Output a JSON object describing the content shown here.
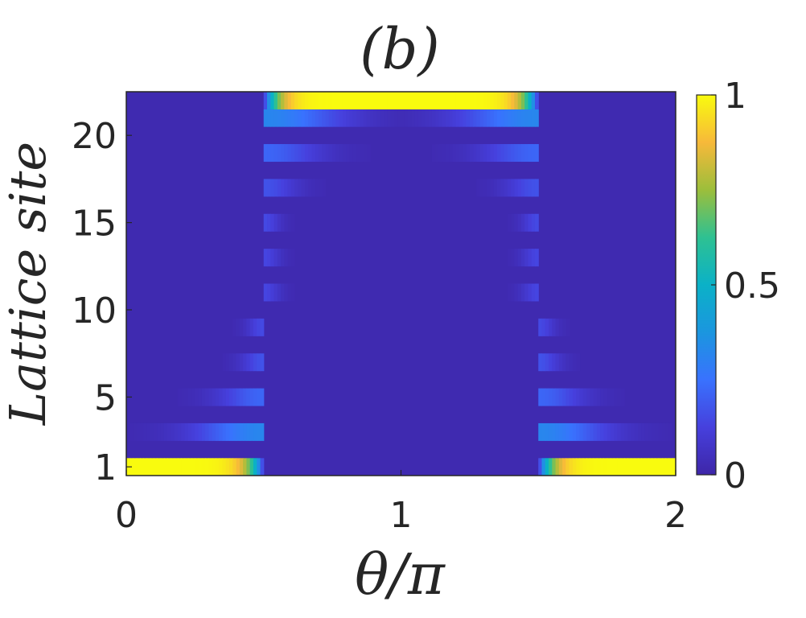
{
  "chart_data": {
    "type": "heatmap",
    "title": "(b)",
    "xlabel": "θ/π",
    "ylabel": "Lattice site",
    "xlim": [
      0,
      2
    ],
    "ylim": [
      1,
      22
    ],
    "x_ticks": [
      "0",
      "1",
      "2"
    ],
    "y_ticks": [
      "1",
      "5",
      "10",
      "15",
      "20"
    ],
    "colorbar": {
      "min": 0,
      "max": 1,
      "ticks": [
        "0",
        "0.5",
        "1"
      ],
      "colormap": "parula"
    },
    "grid": false,
    "sites": [
      1,
      2,
      3,
      4,
      5,
      6,
      7,
      8,
      9,
      10,
      11,
      12,
      13,
      14,
      15,
      16,
      17,
      18,
      19,
      20,
      21,
      22
    ],
    "description_values": {
      "edge_site_1_regions": [
        [
          0,
          0.5,
          1.0
        ],
        [
          1.5,
          2.0,
          1.0
        ]
      ],
      "edge_site_22_region": [
        0.5,
        1.5,
        1.0
      ],
      "bulk_peak_values": {
        "site_2": 0.0,
        "site_3": 0.3,
        "site_5": 0.2,
        "site_7": 0.15,
        "site_9": 0.13,
        "site_11": 0.12,
        "site_13": 0.12,
        "site_15": 0.13,
        "site_17": 0.15,
        "site_19": 0.2,
        "site_21": 0.3
      }
    }
  }
}
